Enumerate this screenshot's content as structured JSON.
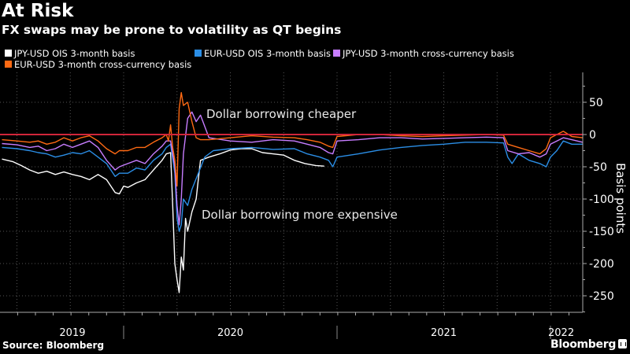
{
  "header": {
    "title": "At Risk",
    "subtitle": "FX swaps may be prone to volatility as QT begins"
  },
  "footer": {
    "source": "Source: Bloomberg",
    "brand": "Bloomberg",
    "brand_icon": "bloomberg-logo-icon"
  },
  "chart_data": {
    "type": "line",
    "title": "At Risk",
    "subtitle": "FX swaps may be prone to volatility as QT begins",
    "xlabel": "",
    "ylabel": "Basis points",
    "ylim": [
      -270,
      95
    ],
    "yticks": [
      50,
      0,
      -50,
      -100,
      -150,
      -200,
      -250
    ],
    "ytick_labels": [
      "50",
      "0",
      "-50",
      "-100",
      "-150",
      "-200",
      "-250"
    ],
    "x_range": [
      "2019-06",
      "2022-02"
    ],
    "x_year_labels": [
      {
        "label": "2019",
        "center": 2019.76
      },
      {
        "label": "2020",
        "center": 2020.5
      },
      {
        "label": "2021",
        "center": 2021.5
      },
      {
        "label": "2022",
        "center": 2022.05
      }
    ],
    "x_year_boundaries": [
      2020.0,
      2021.0,
      2022.0
    ],
    "grid": true,
    "legend_position": "top-left",
    "reference_line": {
      "y": 0,
      "color": "#d0253a"
    },
    "annotations": [
      {
        "text": "Dollar borrowing cheaper",
        "x": 2020.25,
        "y": 30
      },
      {
        "text": "Dollar borrowing more expensive",
        "x": 2020.24,
        "y": -125
      }
    ],
    "series": [
      {
        "name": "JPY-USD OIS 3-month basis",
        "color": "#ffffff",
        "x": [
          2019.43,
          2019.48,
          2019.52,
          2019.56,
          2019.6,
          2019.64,
          2019.68,
          2019.72,
          2019.76,
          2019.8,
          2019.84,
          2019.88,
          2019.92,
          2019.96,
          2019.98,
          2020.0,
          2020.02,
          2020.06,
          2020.1,
          2020.14,
          2020.18,
          2020.2,
          2020.22,
          2020.23,
          2020.24,
          2020.25,
          2020.26,
          2020.27,
          2020.28,
          2020.29,
          2020.3,
          2020.32,
          2020.34,
          2020.35,
          2020.36,
          2020.4,
          2020.45,
          2020.5,
          2020.55,
          2020.6,
          2020.65,
          2020.7,
          2020.75,
          2020.8,
          2020.85,
          2020.9,
          2020.94
        ],
        "values": [
          -38,
          -42,
          -48,
          -55,
          -60,
          -57,
          -62,
          -58,
          -62,
          -65,
          -70,
          -62,
          -70,
          -90,
          -92,
          -80,
          -82,
          -75,
          -70,
          -55,
          -40,
          -30,
          -28,
          -110,
          -200,
          -225,
          -245,
          -190,
          -210,
          -130,
          -150,
          -120,
          -100,
          -70,
          -40,
          -35,
          -30,
          -24,
          -22,
          -22,
          -28,
          -30,
          -32,
          -40,
          -45,
          -48,
          -49
        ]
      },
      {
        "name": "EUR-USD OIS 3-month basis",
        "color": "#2b8ee6",
        "x": [
          2019.43,
          2019.5,
          2019.56,
          2019.6,
          2019.64,
          2019.68,
          2019.72,
          2019.76,
          2019.8,
          2019.84,
          2019.88,
          2019.92,
          2019.96,
          2019.98,
          2020.02,
          2020.06,
          2020.1,
          2020.14,
          2020.18,
          2020.2,
          2020.22,
          2020.24,
          2020.25,
          2020.26,
          2020.27,
          2020.28,
          2020.3,
          2020.32,
          2020.35,
          2020.38,
          2020.42,
          2020.5,
          2020.6,
          2020.7,
          2020.8,
          2020.86,
          2020.92,
          2020.96,
          2020.98,
          2021.0,
          2021.1,
          2021.2,
          2021.3,
          2021.4,
          2021.5,
          2021.6,
          2021.7,
          2021.78,
          2021.8,
          2021.82,
          2021.85,
          2021.9,
          2021.95,
          2021.98,
          2022.0,
          2022.03,
          2022.06,
          2022.1,
          2022.15
        ],
        "values": [
          -20,
          -22,
          -25,
          -28,
          -30,
          -35,
          -32,
          -28,
          -30,
          -25,
          -35,
          -45,
          -65,
          -60,
          -60,
          -52,
          -55,
          -40,
          -30,
          -20,
          -15,
          -60,
          -130,
          -150,
          -140,
          -100,
          -110,
          -85,
          -60,
          -35,
          -25,
          -22,
          -20,
          -23,
          -22,
          -30,
          -35,
          -40,
          -50,
          -35,
          -30,
          -24,
          -20,
          -17,
          -15,
          -12,
          -12,
          -13,
          -35,
          -45,
          -30,
          -40,
          -45,
          -50,
          -35,
          -25,
          -10,
          -15,
          -15
        ]
      },
      {
        "name": "JPY-USD 3-month cross-currency basis",
        "color": "#c77dff",
        "x": [
          2019.43,
          2019.5,
          2019.56,
          2019.6,
          2019.64,
          2019.68,
          2019.72,
          2019.76,
          2019.8,
          2019.84,
          2019.88,
          2019.92,
          2019.96,
          2019.98,
          2020.02,
          2020.06,
          2020.1,
          2020.14,
          2020.18,
          2020.2,
          2020.22,
          2020.24,
          2020.25,
          2020.26,
          2020.27,
          2020.28,
          2020.3,
          2020.32,
          2020.34,
          2020.36,
          2020.4,
          2020.5,
          2020.6,
          2020.7,
          2020.8,
          2020.86,
          2020.92,
          2020.96,
          2020.98,
          2021.0,
          2021.1,
          2021.2,
          2021.3,
          2021.4,
          2021.5,
          2021.6,
          2021.7,
          2021.78,
          2021.8,
          2021.85,
          2021.9,
          2021.95,
          2021.98,
          2022.0,
          2022.03,
          2022.06,
          2022.1,
          2022.15
        ],
        "values": [
          -14,
          -16,
          -20,
          -18,
          -25,
          -22,
          -15,
          -20,
          -15,
          -10,
          -20,
          -40,
          -55,
          -50,
          -45,
          -40,
          -45,
          -30,
          -18,
          -10,
          -10,
          -50,
          -110,
          -140,
          -100,
          -30,
          25,
          35,
          20,
          30,
          -5,
          -10,
          -12,
          -8,
          -10,
          -15,
          -20,
          -28,
          -30,
          -10,
          -8,
          -5,
          -5,
          -7,
          -6,
          -5,
          -4,
          -5,
          -25,
          -30,
          -28,
          -35,
          -30,
          -15,
          -10,
          -5,
          -8,
          -12
        ]
      },
      {
        "name": "EUR-USD 3-month cross-currency basis",
        "color": "#ff6a13",
        "x": [
          2019.43,
          2019.5,
          2019.56,
          2019.6,
          2019.64,
          2019.68,
          2019.72,
          2019.76,
          2019.8,
          2019.84,
          2019.88,
          2019.92,
          2019.96,
          2019.98,
          2020.02,
          2020.06,
          2020.1,
          2020.14,
          2020.18,
          2020.2,
          2020.21,
          2020.22,
          2020.23,
          2020.24,
          2020.25,
          2020.26,
          2020.27,
          2020.28,
          2020.3,
          2020.32,
          2020.34,
          2020.36,
          2020.4,
          2020.5,
          2020.6,
          2020.7,
          2020.8,
          2020.86,
          2020.92,
          2020.96,
          2020.98,
          2021.0,
          2021.1,
          2021.2,
          2021.3,
          2021.4,
          2021.5,
          2021.6,
          2021.7,
          2021.78,
          2021.8,
          2021.85,
          2021.9,
          2021.95,
          2021.98,
          2022.0,
          2022.03,
          2022.06,
          2022.1,
          2022.15
        ],
        "values": [
          -8,
          -10,
          -12,
          -10,
          -15,
          -12,
          -5,
          -10,
          -5,
          -2,
          -10,
          -22,
          -30,
          -25,
          -25,
          -20,
          -20,
          -12,
          -5,
          0,
          -10,
          15,
          -20,
          -40,
          -80,
          40,
          65,
          45,
          50,
          20,
          -5,
          -8,
          -8,
          -5,
          -2,
          -4,
          -5,
          -8,
          -12,
          -18,
          -20,
          -3,
          0,
          0,
          -2,
          -3,
          -2,
          -1,
          0,
          -1,
          -15,
          -20,
          -25,
          -30,
          -22,
          -5,
          0,
          5,
          -3,
          -5
        ]
      }
    ]
  }
}
